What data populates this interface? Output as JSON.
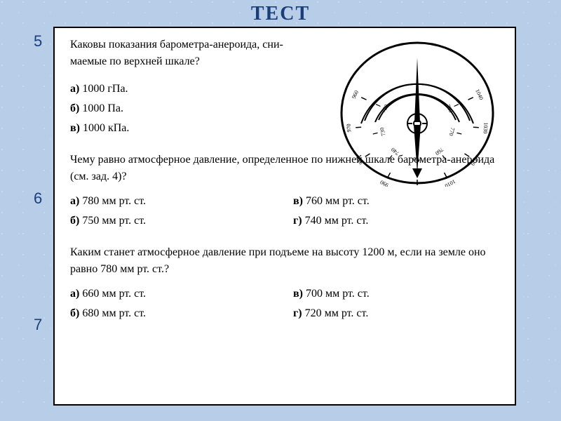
{
  "title": "ТЕСТ",
  "numbers": {
    "n5": "5",
    "n6": "6",
    "n7": "7"
  },
  "q5": {
    "text_line1": "Каковы показания барометра-анероида, сни-",
    "text_line2": "маемые по верхней шкале?",
    "options": [
      {
        "label": "а)",
        "value": "1000 гПа."
      },
      {
        "label": "б)",
        "value": "1000 Па."
      },
      {
        "label": "в)",
        "value": "1000 кПа."
      }
    ]
  },
  "q6": {
    "text": "Чему равно атмосферное давление, определенное по нижней шкале барометра-анероида (см. зад. 4)?",
    "options": [
      {
        "label": "а)",
        "value": "780 мм рт. ст."
      },
      {
        "label": "в)",
        "value": "760 мм рт. ст."
      },
      {
        "label": "б)",
        "value": "750 мм рт. ст."
      },
      {
        "label": "г)",
        "value": "740 мм рт. ст."
      }
    ]
  },
  "q7": {
    "text": "Каким станет атмосферное давление при подъеме на высоту 1200 м, если на земле оно равно 780 мм рт. ст.?",
    "options": [
      {
        "label": "а)",
        "value": "660 мм рт. ст."
      },
      {
        "label": "в)",
        "value": "700 мм рт. ст."
      },
      {
        "label": "б)",
        "value": "680 мм рт. ст."
      },
      {
        "label": "г)",
        "value": "720 мм рт. ст."
      }
    ]
  },
  "gauge": {
    "outer_ticks": [
      "960",
      "970",
      "980",
      "990",
      "1000",
      "1010",
      "1020",
      "1030",
      "1040"
    ],
    "inner_ticks": [
      "720",
      "730",
      "740",
      "750",
      "760",
      "770",
      "780"
    ],
    "outer_range": [
      960,
      1040
    ],
    "inner_range": [
      720,
      780
    ],
    "needle_value_outer": 1000,
    "colors": {
      "stroke": "#000000",
      "fill": "#ffffff",
      "text": "#000000"
    },
    "font_size_ticks": 8
  },
  "style": {
    "bg_color": "#b8cde8",
    "paper_bg": "#ffffff",
    "title_color": "#1a3e7a",
    "number_color": "#1a3e7a",
    "border_color": "#000000",
    "body_font": "Georgia, Times New Roman, serif",
    "title_fontsize": 28,
    "body_fontsize": 16
  }
}
